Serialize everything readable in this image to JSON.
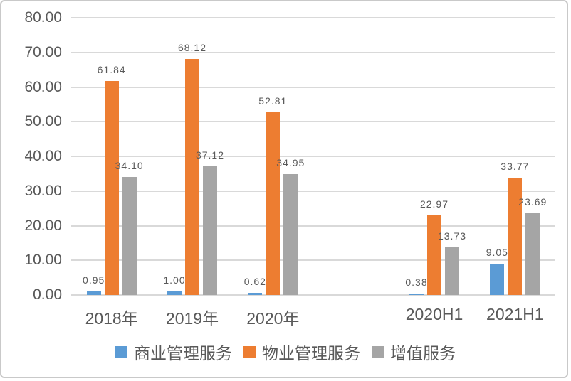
{
  "frame": {
    "background": "#ffffff",
    "border_color": "#c9c9c9"
  },
  "chart_data": {
    "type": "bar",
    "categories": [
      "2018年",
      "2019年",
      "2020年",
      "2020H1",
      "2021H1"
    ],
    "series": [
      {
        "name": "商业管理服务",
        "color": "#5B9BD5",
        "values": [
          0.95,
          1.0,
          0.62,
          0.38,
          9.05
        ]
      },
      {
        "name": "物业管理服务",
        "color": "#ED7D31",
        "values": [
          61.84,
          68.12,
          52.81,
          22.97,
          33.77
        ]
      },
      {
        "name": "增值服务",
        "color": "#A5A5A5",
        "values": [
          34.1,
          37.12,
          34.95,
          13.73,
          23.69
        ]
      }
    ],
    "title": "",
    "xlabel": "",
    "ylabel": "",
    "ylim": [
      0,
      80
    ],
    "y_tick_step": 10,
    "y_tick_decimals": 2,
    "grid": true,
    "gridline_color": "#D9D9D9",
    "text_color": "#595959",
    "data_labels": true,
    "data_label_decimals": 2,
    "legend_position": "bottom",
    "category_slots": [
      0,
      1,
      2,
      4,
      5
    ],
    "total_slots": 6
  }
}
